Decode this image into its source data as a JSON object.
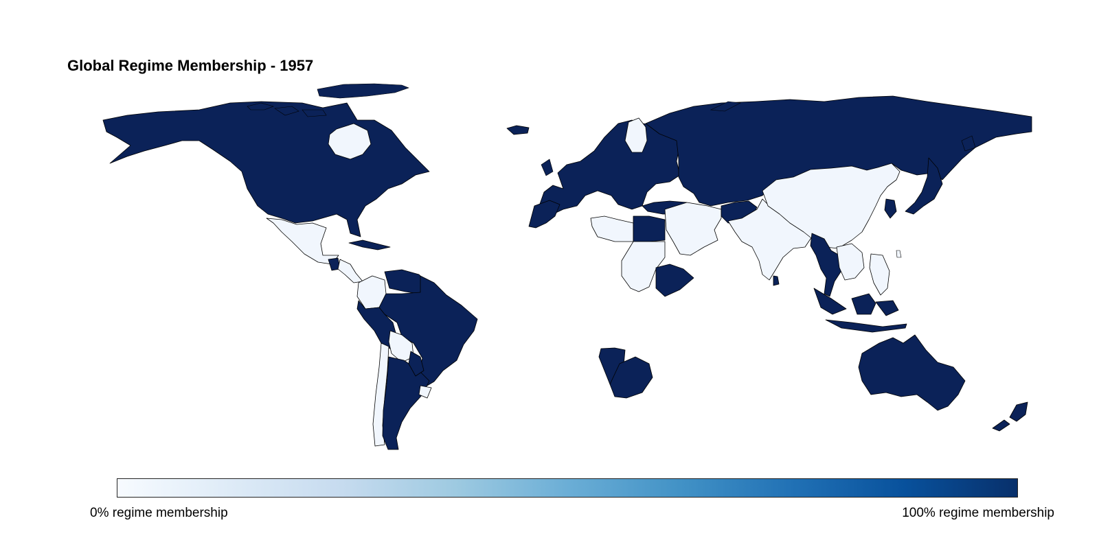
{
  "map": {
    "title": "Global Regime Membership - 1957",
    "colors": {
      "member": "#0b2258",
      "non_member": "#f1f6fd",
      "border": "#000000",
      "background": "#ffffff"
    },
    "regions": [
      {
        "name": "North America",
        "membership": 1
      },
      {
        "name": "Greenland",
        "membership": 0
      },
      {
        "name": "Mexico",
        "membership": 0
      },
      {
        "name": "Cuba",
        "membership": 1
      },
      {
        "name": "Guatemala",
        "membership": 1
      },
      {
        "name": "Central America",
        "membership": 0
      },
      {
        "name": "Colombia",
        "membership": 0
      },
      {
        "name": "Venezuela",
        "membership": 1
      },
      {
        "name": "Brazil and Guianas",
        "membership": 1
      },
      {
        "name": "Peru and Ecuador",
        "membership": 1
      },
      {
        "name": "Bolivia",
        "membership": 0
      },
      {
        "name": "Chile",
        "membership": 0
      },
      {
        "name": "Argentina",
        "membership": 1
      },
      {
        "name": "Paraguay",
        "membership": 1
      },
      {
        "name": "Uruguay",
        "membership": 0
      },
      {
        "name": "Iceland",
        "membership": 1
      },
      {
        "name": "Western Europe",
        "membership": 1
      },
      {
        "name": "Finland",
        "membership": 0
      },
      {
        "name": "Soviet Union",
        "membership": 1
      },
      {
        "name": "Turkey",
        "membership": 1
      },
      {
        "name": "Morocco",
        "membership": 1
      },
      {
        "name": "Libya",
        "membership": 0
      },
      {
        "name": "Egypt",
        "membership": 1
      },
      {
        "name": "Sudan",
        "membership": 0
      },
      {
        "name": "Ethiopia",
        "membership": 1
      },
      {
        "name": "Middle East",
        "membership": 0
      },
      {
        "name": "Afghanistan",
        "membership": 1
      },
      {
        "name": "India and Pakistan",
        "membership": 0
      },
      {
        "name": "Ceylon",
        "membership": 1
      },
      {
        "name": "China",
        "membership": 0
      },
      {
        "name": "Korea",
        "membership": 1
      },
      {
        "name": "Japan",
        "membership": 1
      },
      {
        "name": "Burma and Thailand",
        "membership": 1
      },
      {
        "name": "Indochina",
        "membership": 0
      },
      {
        "name": "Philippines",
        "membership": 0
      },
      {
        "name": "Indonesia",
        "membership": 1
      },
      {
        "name": "Southwest Africa",
        "membership": 1
      },
      {
        "name": "South Africa",
        "membership": 1
      },
      {
        "name": "Australia",
        "membership": 1
      },
      {
        "name": "New Zealand",
        "membership": 1
      }
    ]
  },
  "colorbar": {
    "min_label": "0% regime membership",
    "max_label": "100% regime membership",
    "colors": [
      "#f7fbff",
      "#deebf7",
      "#c6dbef",
      "#9ecae1",
      "#6baed6",
      "#4292c6",
      "#2171b5",
      "#08519c",
      "#08306b"
    ]
  }
}
